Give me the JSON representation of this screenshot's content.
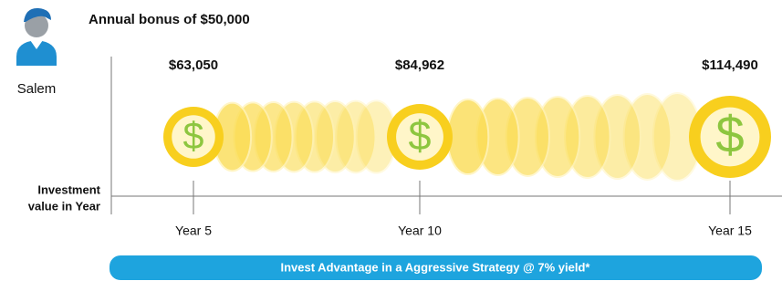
{
  "header": {
    "title": "Annual bonus of $50,000",
    "person": "Salem"
  },
  "axis_label": [
    "Investment",
    "value in Year"
  ],
  "milestones": [
    {
      "value": "$63,050",
      "label": "Year 5"
    },
    {
      "value": "$84,962",
      "label": "Year 10"
    },
    {
      "value": "$114,490",
      "label": "Year 15"
    }
  ],
  "coin_symbol": "$",
  "footer": "Invest Advantage in a Aggressive Strategy @ 7% yield*"
}
